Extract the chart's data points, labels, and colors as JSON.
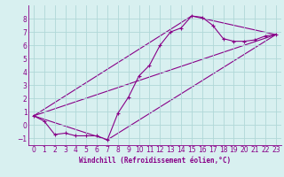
{
  "xlabel": "Windchill (Refroidissement éolien,°C)",
  "bg_color": "#d8f0f0",
  "grid_color": "#b0d8d8",
  "line_color": "#880088",
  "xlim": [
    -0.5,
    23.5
  ],
  "ylim": [
    -1.5,
    9.0
  ],
  "xticks": [
    0,
    1,
    2,
    3,
    4,
    5,
    6,
    7,
    8,
    9,
    10,
    11,
    12,
    13,
    14,
    15,
    16,
    17,
    18,
    19,
    20,
    21,
    22,
    23
  ],
  "yticks": [
    -1,
    0,
    1,
    2,
    3,
    4,
    5,
    6,
    7,
    8
  ],
  "series1_x": [
    0,
    1,
    2,
    3,
    4,
    5,
    6,
    7,
    8,
    9,
    10,
    11,
    12,
    13,
    14,
    15,
    16,
    17,
    18,
    19,
    20,
    21,
    22,
    23
  ],
  "series1_y": [
    0.7,
    0.3,
    -0.7,
    -0.6,
    -0.8,
    -0.8,
    -0.8,
    -1.1,
    0.9,
    2.1,
    3.7,
    4.5,
    6.0,
    7.0,
    7.3,
    8.2,
    8.1,
    7.5,
    6.5,
    6.3,
    6.3,
    6.4,
    6.7,
    6.8
  ],
  "series2_x": [
    0,
    23
  ],
  "series2_y": [
    0.7,
    6.8
  ],
  "series3_x": [
    0,
    7,
    23
  ],
  "series3_y": [
    0.7,
    -1.1,
    6.8
  ],
  "series4_x": [
    0,
    15,
    23
  ],
  "series4_y": [
    0.7,
    8.2,
    6.8
  ],
  "tick_fontsize": 5.5,
  "xlabel_fontsize": 5.5
}
